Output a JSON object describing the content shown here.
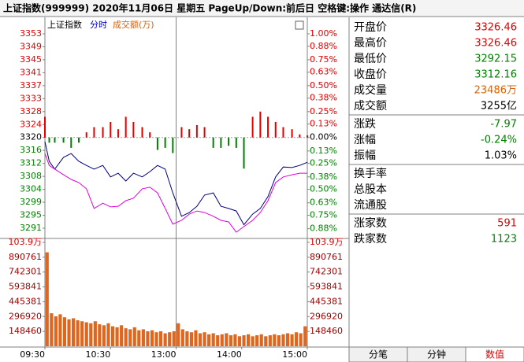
{
  "window_title": "上证指数(999999)  2020年11月06日  星期五  PageUp/Down:前后日  空格键:操作  通达信(R)",
  "chart_data": [
    {
      "type": "line",
      "title": "上证指数",
      "mode": "分时",
      "subtitle": "成交额(万)",
      "x": [
        0,
        4,
        9,
        17,
        24,
        31,
        38,
        45,
        53,
        60,
        67,
        74,
        81,
        89,
        96,
        103,
        110,
        117,
        125,
        132,
        139,
        146,
        154,
        161,
        168,
        175,
        182,
        190,
        197,
        204,
        211,
        218,
        226,
        233,
        240
      ],
      "xlim": [
        0,
        240
      ],
      "ylim": [
        3288.56,
        3355.85
      ],
      "yticks": [
        {
          "value": 3353.33,
          "label": "3353"
        },
        {
          "value": 3349.18,
          "label": "3349"
        },
        {
          "value": 3345.03,
          "label": "3345"
        },
        {
          "value": 3340.88,
          "label": "3341"
        },
        {
          "value": 3336.73,
          "label": "3337"
        },
        {
          "value": 3332.58,
          "label": "3333"
        },
        {
          "value": 3328.43,
          "label": "3328"
        },
        {
          "value": 3324.28,
          "label": "3324"
        },
        {
          "value": 3320.13,
          "label": "3320"
        },
        {
          "value": 3315.98,
          "label": "3316"
        },
        {
          "value": 3311.83,
          "label": "3312"
        },
        {
          "value": 3307.68,
          "label": "3308"
        },
        {
          "value": 3303.53,
          "label": "3304"
        },
        {
          "value": 3299.38,
          "label": "3299"
        },
        {
          "value": 3295.23,
          "label": "3295"
        },
        {
          "value": 3291.08,
          "label": "3291"
        }
      ],
      "y2lim": [
        -0.951,
        1.076
      ],
      "y2ticks": [
        {
          "value": 1.0,
          "label": "1.00%"
        },
        {
          "value": 0.88,
          "label": "0.88%"
        },
        {
          "value": 0.75,
          "label": "0.75%"
        },
        {
          "value": 0.63,
          "label": "0.63%"
        },
        {
          "value": 0.5,
          "label": "0.50%"
        },
        {
          "value": 0.38,
          "label": "0.38%"
        },
        {
          "value": 0.25,
          "label": "0.25%"
        },
        {
          "value": 0.13,
          "label": "0.13%"
        },
        {
          "value": 0,
          "label": "0.00%"
        },
        {
          "value": -0.13,
          "label": "0.13%"
        },
        {
          "value": -0.25,
          "label": "0.25%"
        },
        {
          "value": -0.38,
          "label": "0.38%"
        },
        {
          "value": -0.5,
          "label": "0.50%"
        },
        {
          "value": -0.63,
          "label": "0.63%"
        },
        {
          "value": -0.75,
          "label": "0.75%"
        },
        {
          "value": -0.88,
          "label": "0.88%"
        }
      ],
      "up_color": "#e00000",
      "down_color": "#008000",
      "series": [
        {
          "type": "bar",
          "axis": "y2",
          "color": "#e00000",
          "negative_color": "#008000",
          "values": [
            0.2,
            -0.05,
            -0.05,
            -0.05,
            -0.1,
            -0.05,
            0.05,
            0.1,
            0.1,
            0.15,
            0.08,
            0.2,
            0.15,
            0.1,
            0.05,
            -0.12,
            -0.1,
            -0.15,
            0.1,
            0.08,
            0.12,
            0.1,
            -0.1,
            -0.1,
            -0.08,
            -0.1,
            -0.3,
            0.2,
            0.25,
            0.2,
            0.15,
            0.1,
            0.08,
            0.03,
            0.02
          ]
        },
        {
          "type": "line",
          "color": "#000080",
          "values": [
            3318.8,
            3312.5,
            3310.0,
            3313.8,
            3315.0,
            3312.5,
            3311.2,
            3310.0,
            3311.2,
            3307.5,
            3308.7,
            3306.2,
            3308.7,
            3307.5,
            3309.2,
            3311.2,
            3310.0,
            3302.4,
            3294.9,
            3296.1,
            3298.1,
            3301.7,
            3302.4,
            3298.1,
            3297.4,
            3296.6,
            3292.2,
            3295.6,
            3297.4,
            3301.2,
            3307.5,
            3310.7,
            3310.5,
            3311.2,
            3312.2
          ]
        },
        {
          "type": "line",
          "color": "#e000e0",
          "values": [
            3315.0,
            3311.2,
            3310.0,
            3308.2,
            3306.7,
            3305.7,
            3303.7,
            3297.4,
            3299.1,
            3297.9,
            3298.1,
            3299.9,
            3300.7,
            3303.7,
            3304.2,
            3302.4,
            3297.4,
            3292.4,
            3293.6,
            3295.6,
            3296.6,
            3296.1,
            3294.9,
            3293.6,
            3293.1,
            3289.8,
            3291.6,
            3293.6,
            3296.1,
            3299.9,
            3305.7,
            3307.5,
            3308.2,
            3308.7,
            3308.7
          ]
        }
      ]
    },
    {
      "type": "bar",
      "color": "#e0661e",
      "x": [
        2,
        6,
        10,
        14,
        18,
        22,
        26,
        30,
        34,
        38,
        42,
        46,
        50,
        54,
        58,
        62,
        66,
        70,
        74,
        78,
        82,
        86,
        90,
        94,
        98,
        102,
        106,
        110,
        114,
        118,
        122,
        126,
        130,
        134,
        138,
        142,
        146,
        150,
        154,
        158,
        162,
        166,
        170,
        174,
        178,
        182,
        186,
        190,
        194,
        198,
        202,
        206,
        210,
        214,
        218,
        222,
        226,
        230,
        234,
        238
      ],
      "values": [
        940000,
        330000,
        300000,
        320000,
        290000,
        270000,
        280000,
        260000,
        250000,
        240000,
        230000,
        250000,
        220000,
        210000,
        230000,
        200000,
        190000,
        210000,
        180000,
        170000,
        190000,
        160000,
        170000,
        150000,
        160000,
        140000,
        150000,
        130000,
        140000,
        150000,
        230000,
        170000,
        150000,
        140000,
        160000,
        130000,
        140000,
        120000,
        130000,
        110000,
        120000,
        130000,
        110000,
        120000,
        100000,
        110000,
        120000,
        100000,
        110000,
        120000,
        100000,
        110000,
        120000,
        110000,
        120000,
        130000,
        120000,
        140000,
        130000,
        200000
      ],
      "xlim": [
        0,
        240
      ],
      "xticks": [
        {
          "value": 0,
          "label": "09:30"
        },
        {
          "value": 60,
          "label": "10:30"
        },
        {
          "value": 120,
          "label": "13:00"
        },
        {
          "value": 180,
          "label": "14:00"
        },
        {
          "value": 240,
          "label": "15:00"
        }
      ],
      "ylim": [
        0,
        1039220
      ],
      "yticks": [
        {
          "value": 1039220,
          "label": "103.9万"
        },
        890761,
        742301,
        593841,
        445381,
        296920,
        148460
      ]
    }
  ],
  "panel": {
    "groups": [
      [
        {
          "label": "开盘价",
          "value": "3326.46",
          "color": "#e00000"
        },
        {
          "label": "最高价",
          "value": "3326.46",
          "color": "#e00000"
        },
        {
          "label": "最低价",
          "value": "3292.15",
          "color": "#008000"
        },
        {
          "label": "收盘价",
          "value": "3312.16",
          "color": "#008000"
        },
        {
          "label": "成交量",
          "value": "23486万",
          "color": "#e06000"
        },
        {
          "label": "成交额",
          "value": "3255亿",
          "color": "#000000"
        }
      ],
      [
        {
          "label": "涨跌",
          "value": "-7.97",
          "color": "#008000"
        },
        {
          "label": "涨幅",
          "value": "-0.24%",
          "color": "#008000"
        },
        {
          "label": "振幅",
          "value": "1.03%",
          "color": "#000000"
        }
      ],
      [
        {
          "label": "换手率"
        },
        {
          "label": "总股本"
        },
        {
          "label": "流通股"
        }
      ],
      [
        {
          "label": "涨家数",
          "value": "591",
          "color": "#e00000"
        },
        {
          "label": "跌家数",
          "value": "1123",
          "color": "#008000"
        }
      ]
    ],
    "tabs": [
      "分笔",
      "分钟",
      "数值"
    ],
    "active_tab": 2
  }
}
